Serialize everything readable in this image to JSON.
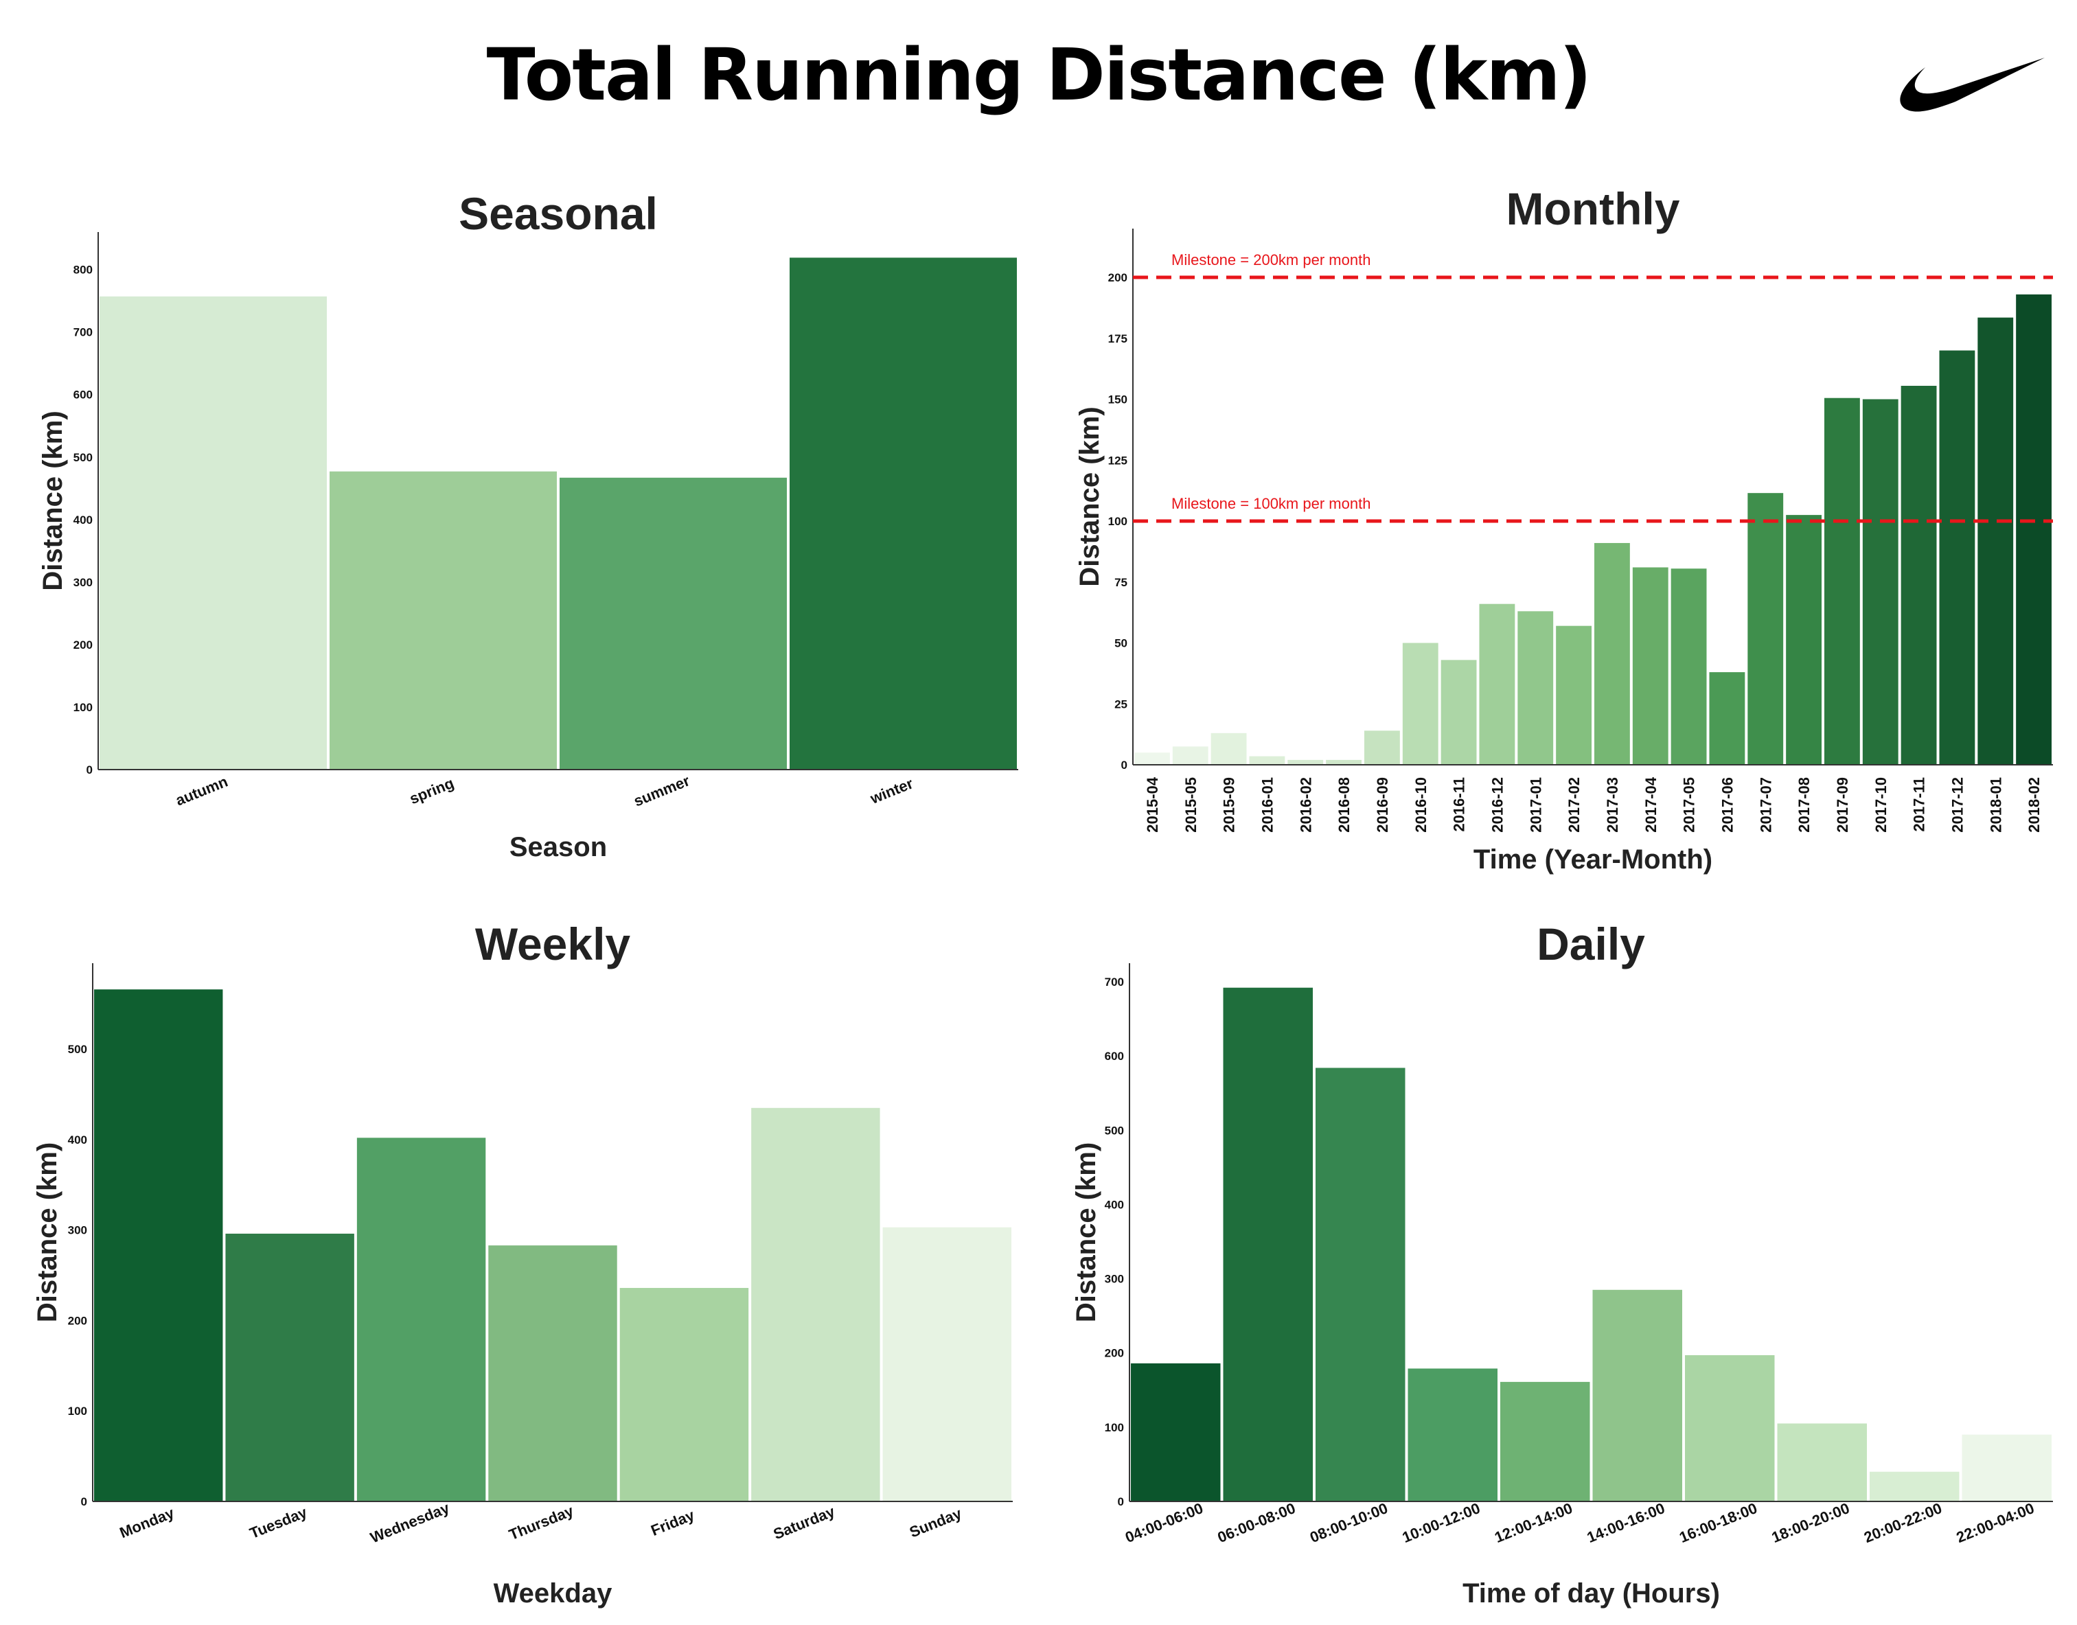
{
  "header": {
    "title": "Total Running Distance (km)"
  },
  "logo": {
    "icon": "swoosh-logo-icon",
    "color": "#000000"
  },
  "colors": {
    "milestone": "#e8161b"
  },
  "chart_data": [
    {
      "id": "seasonal",
      "type": "bar",
      "title": "Seasonal",
      "xlabel": "Season",
      "ylabel": "Distance (km)",
      "categories": [
        "autumn",
        "spring",
        "summer",
        "winter"
      ],
      "values": [
        757,
        477,
        467,
        819
      ],
      "colors": [
        "#d6ebd3",
        "#9ecd98",
        "#5aa56a",
        "#23743e"
      ],
      "ylim": [
        0,
        860
      ],
      "yticks": [
        0,
        100,
        200,
        300,
        400,
        500,
        600,
        700,
        800
      ]
    },
    {
      "id": "monthly",
      "type": "bar",
      "title": "Monthly",
      "xlabel": "Time  (Year-Month)",
      "ylabel": "Distance (km)",
      "categories": [
        "2015-04",
        "2015-05",
        "2015-09",
        "2016-01",
        "2016-02",
        "2016-08",
        "2016-09",
        "2016-10",
        "2016-11",
        "2016-12",
        "2017-01",
        "2017-02",
        "2017-03",
        "2017-04",
        "2017-05",
        "2017-06",
        "2017-07",
        "2017-08",
        "2017-09",
        "2017-10",
        "2017-11",
        "2017-12",
        "2018-01",
        "2018-02"
      ],
      "values": [
        5,
        7.5,
        13,
        3.5,
        2,
        2,
        14,
        50,
        43,
        66,
        63,
        57,
        91,
        81,
        80.5,
        38,
        111.5,
        102.5,
        150.5,
        150,
        155.5,
        170,
        183.5,
        193
      ],
      "colors": [
        "#eef7ec",
        "#e8f4e5",
        "#e2f2de",
        "#ddefd8",
        "#d6ebd2",
        "#cfe7ca",
        "#c6e3c0",
        "#b9ddb3",
        "#acd6a6",
        "#9fcf99",
        "#91c78c",
        "#84c07f",
        "#76b773",
        "#68ad68",
        "#5aa45f",
        "#4b9a55",
        "#3f8f4c",
        "#358545",
        "#2d7b40",
        "#26713b",
        "#1f6836",
        "#185e31",
        "#12552c",
        "#0c4b27"
      ],
      "ylim": [
        0,
        220
      ],
      "yticks": [
        0,
        25,
        50,
        75,
        100,
        125,
        150,
        175,
        200
      ],
      "milestones": [
        {
          "value": 200,
          "label": "Milestone = 200km per month"
        },
        {
          "value": 100,
          "label": "Milestone = 100km per month"
        }
      ]
    },
    {
      "id": "weekly",
      "type": "bar",
      "title": "Weekly",
      "xlabel": "Weekday",
      "ylabel": "Distance (km)",
      "categories": [
        "Monday",
        "Tuesday",
        "Wednesday",
        "Thursday",
        "Friday",
        "Saturday",
        "Sunday"
      ],
      "values": [
        566,
        296,
        402,
        283,
        236,
        435,
        303
      ],
      "colors": [
        "#0f5f30",
        "#2f7c48",
        "#52a065",
        "#81ba81",
        "#a8d3a1",
        "#cae5c5",
        "#e7f3e3"
      ],
      "ylim": [
        0,
        595
      ],
      "yticks": [
        0,
        100,
        200,
        300,
        400,
        500
      ]
    },
    {
      "id": "daily",
      "type": "bar",
      "title": "Daily",
      "xlabel": "Time of day  (Hours)",
      "ylabel": "Distance (km)",
      "categories": [
        "04:00-06:00",
        "06:00-08:00",
        "08:00-10:00",
        "10:00-12:00",
        "12:00-14:00",
        "14:00-16:00",
        "16:00-18:00",
        "18:00-20:00",
        "20:00-22:00",
        "22:00-04:00"
      ],
      "values": [
        186,
        692,
        584,
        179,
        161,
        285,
        197,
        105,
        40,
        90
      ],
      "colors": [
        "#0b552c",
        "#1f6e3c",
        "#368650",
        "#4c9d63",
        "#6eb273",
        "#8fc48b",
        "#aad5a4",
        "#c4e4be",
        "#d8eed3",
        "#ecf6e9"
      ],
      "ylim": [
        0,
        725
      ],
      "yticks": [
        0,
        100,
        200,
        300,
        400,
        500,
        600,
        700
      ]
    }
  ]
}
